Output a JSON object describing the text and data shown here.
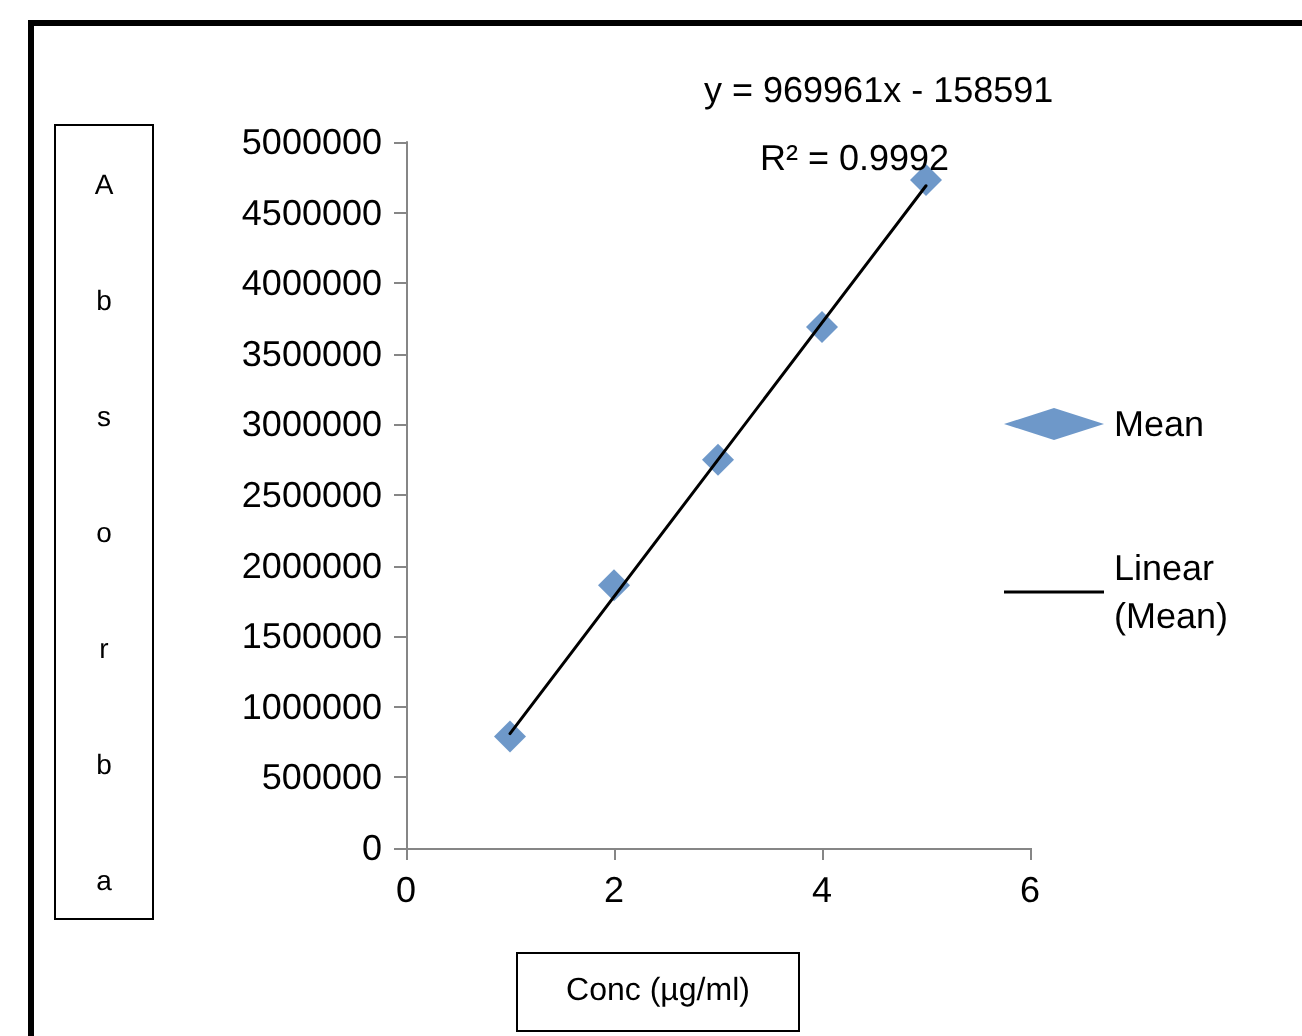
{
  "chart_data": {
    "type": "scatter",
    "xlabel": "Conc (µg/ml)",
    "ylabel": "Absorba",
    "annotations": [
      "y = 969961x - 158591",
      "R² = 0.9992"
    ],
    "series": [
      {
        "name": "Mean",
        "color": "#4a7ebb",
        "marker": "diamond",
        "x": [
          1,
          2,
          3,
          4,
          5
        ],
        "values": [
          790000,
          1860000,
          2750000,
          3690000,
          4730000
        ]
      },
      {
        "name": "Linear (Mean)",
        "type": "line",
        "color": "#000000",
        "marker": "none",
        "x": [
          1,
          5
        ],
        "values": [
          810000,
          4690000
        ]
      }
    ],
    "xlim": [
      0,
      6
    ],
    "xticks": [
      0,
      2,
      4,
      6
    ],
    "ylim": [
      0,
      5000000
    ],
    "yticks": [
      0,
      500000,
      1000000,
      1500000,
      2000000,
      2500000,
      3000000,
      3500000,
      4000000,
      4500000,
      5000000
    ],
    "grid": false,
    "legend": "right"
  }
}
